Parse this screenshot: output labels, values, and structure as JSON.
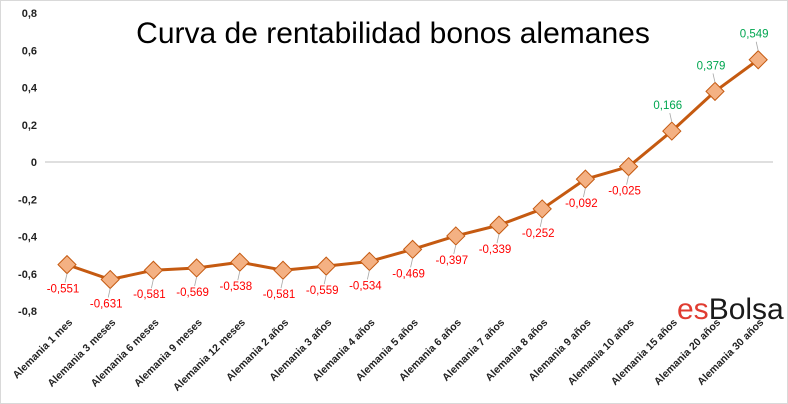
{
  "chart_data": {
    "type": "line",
    "title": "Curva de rentabilidad bonos alemanes",
    "xlabel": "",
    "ylabel": "",
    "categories": [
      "Alemania 1 mes",
      "Alemania 3 meses",
      "Alemania 6 meses",
      "Alemania 9 meses",
      "Alemania 12 meses",
      "Alemania 2 años",
      "Alemania 3 años",
      "Alemania 4 años",
      "Alemania 5 años",
      "Alemania 6 años",
      "Alemania 7 años",
      "Alemania 8 años",
      "Alemania 9 años",
      "Alemania 10 años",
      "Alemania 15 años",
      "Alemania 20 años",
      "Alemania 30 años"
    ],
    "values": [
      -0.551,
      -0.631,
      -0.581,
      -0.569,
      -0.538,
      -0.581,
      -0.559,
      -0.534,
      -0.469,
      -0.397,
      -0.339,
      -0.252,
      -0.092,
      -0.025,
      0.166,
      0.379,
      0.549
    ],
    "data_labels": [
      "-0,551",
      "-0,631",
      "-0,581",
      "-0,569",
      "-0,538",
      "-0,581",
      "-0,559",
      "-0,534",
      "-0,469",
      "-0,397",
      "-0,339",
      "-0,252",
      "-0,092",
      "-0,025",
      "0,166",
      "0,379",
      "0,549"
    ],
    "ylim": [
      -0.8,
      0.8
    ],
    "yticks": [
      0.8,
      0.6,
      0.4,
      0.2,
      0,
      -0.2,
      -0.4,
      -0.6,
      -0.8
    ],
    "ytick_labels": [
      "0,8",
      "0,6",
      "0,4",
      "0,2",
      "0",
      "-0,2",
      "-0,4",
      "-0,6",
      "-0,8"
    ],
    "grid": false,
    "legend": "none",
    "colors": {
      "line": "#c55a11",
      "marker_fill": "#f4b183",
      "marker_stroke": "#c55a11",
      "label_negative": "#ff0000",
      "label_positive": "#00a650",
      "axis": "#bfbfbf"
    }
  },
  "brand": {
    "part1": "es",
    "part2": "Bolsa",
    "color1": "#e03c31",
    "color2": "#1a1a1a"
  }
}
